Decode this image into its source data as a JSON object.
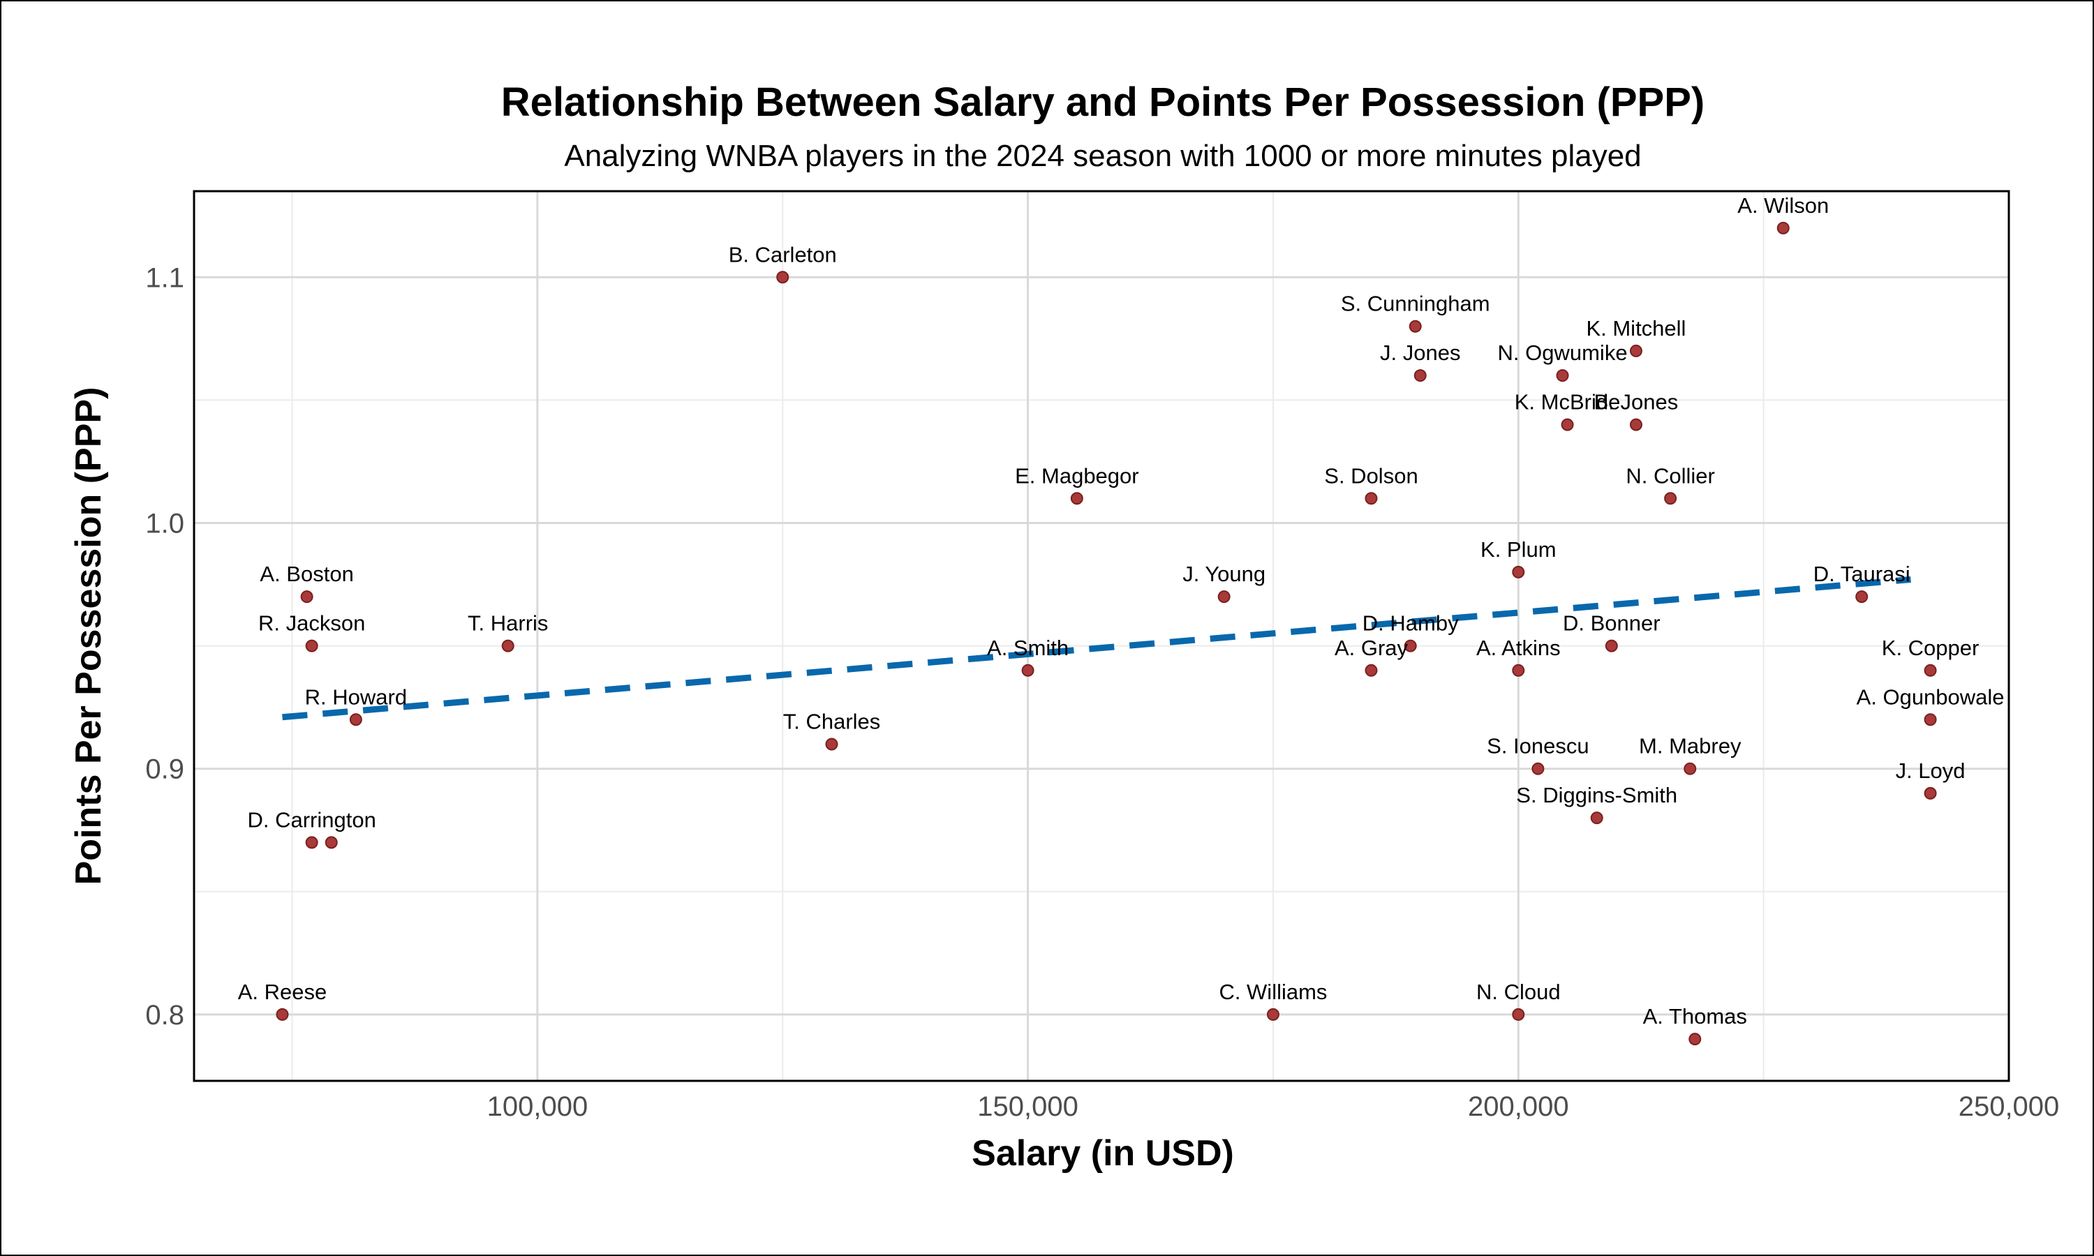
{
  "chart_data": {
    "type": "scatter",
    "title": "Relationship Between Salary and Points Per Possession (PPP)",
    "subtitle": "Analyzing WNBA players in the 2024 season with 1000 or more minutes played",
    "xlabel": "Salary (in USD)",
    "ylabel": "Points Per Possession (PPP)",
    "xlim": [
      65000,
      250000
    ],
    "ylim": [
      0.773,
      1.135
    ],
    "x_ticks": [
      100000,
      150000,
      200000,
      250000
    ],
    "x_tick_labels": [
      "100,000",
      "150,000",
      "200,000",
      "250,000"
    ],
    "y_ticks": [
      0.8,
      0.9,
      1.0,
      1.1
    ],
    "y_tick_labels": [
      "0.8",
      "0.9",
      "1.0",
      "1.1"
    ],
    "grid": true,
    "point_color": "#a93a3a",
    "trend_color": "#0868ac",
    "trendline": {
      "style": "dashed",
      "x": [
        74000,
        240000
      ],
      "y": [
        0.921,
        0.977
      ]
    },
    "points": [
      {
        "label": "A. Wilson",
        "x": 227000,
        "y": 1.12
      },
      {
        "label": "B. Carleton",
        "x": 125000,
        "y": 1.1
      },
      {
        "label": "S. Cunningham",
        "x": 189500,
        "y": 1.08
      },
      {
        "label": "K. Mitchell",
        "x": 212000,
        "y": 1.07
      },
      {
        "label": "J. Jones",
        "x": 190000,
        "y": 1.06
      },
      {
        "label": "N. Ogwumike",
        "x": 204500,
        "y": 1.06
      },
      {
        "label": "K. McBride",
        "x": 205000,
        "y": 1.04
      },
      {
        "label": "B. Jones",
        "x": 212000,
        "y": 1.04
      },
      {
        "label": "E. Magbegor",
        "x": 155000,
        "y": 1.01
      },
      {
        "label": "S. Dolson",
        "x": 185000,
        "y": 1.01
      },
      {
        "label": "N. Collier",
        "x": 215500,
        "y": 1.01
      },
      {
        "label": "K. Plum",
        "x": 200000,
        "y": 0.98
      },
      {
        "label": "A. Boston",
        "x": 76500,
        "y": 0.97
      },
      {
        "label": "J. Young",
        "x": 170000,
        "y": 0.97
      },
      {
        "label": "D. Taurasi",
        "x": 235000,
        "y": 0.97
      },
      {
        "label": "R. Jackson",
        "x": 77000,
        "y": 0.95
      },
      {
        "label": "T. Harris",
        "x": 97000,
        "y": 0.95
      },
      {
        "label": "D. Hamby",
        "x": 189000,
        "y": 0.95
      },
      {
        "label": "D. Bonner",
        "x": 209500,
        "y": 0.95
      },
      {
        "label": "A. Smith",
        "x": 150000,
        "y": 0.94
      },
      {
        "label": "A. Gray",
        "x": 185000,
        "y": 0.94
      },
      {
        "label": "A. Atkins",
        "x": 200000,
        "y": 0.94
      },
      {
        "label": "K. Copper",
        "x": 242000,
        "y": 0.94
      },
      {
        "label": "R. Howard",
        "x": 81500,
        "y": 0.92
      },
      {
        "label": "A. Ogunbowale",
        "x": 242000,
        "y": 0.92
      },
      {
        "label": "T. Charles",
        "x": 130000,
        "y": 0.91
      },
      {
        "label": "S. Ionescu",
        "x": 202000,
        "y": 0.9
      },
      {
        "label": "M. Mabrey",
        "x": 217500,
        "y": 0.9
      },
      {
        "label": "J. Loyd",
        "x": 242000,
        "y": 0.89
      },
      {
        "label": "S. Diggins-Smith",
        "x": 208000,
        "y": 0.88
      },
      {
        "label": "D. Carrington",
        "x": 77000,
        "y": 0.87
      },
      {
        "label": "",
        "x": 79000,
        "y": 0.87
      },
      {
        "label": "A. Reese",
        "x": 74000,
        "y": 0.8
      },
      {
        "label": "C. Williams",
        "x": 175000,
        "y": 0.8
      },
      {
        "label": "N. Cloud",
        "x": 200000,
        "y": 0.8
      },
      {
        "label": "A. Thomas",
        "x": 218000,
        "y": 0.79
      }
    ]
  }
}
